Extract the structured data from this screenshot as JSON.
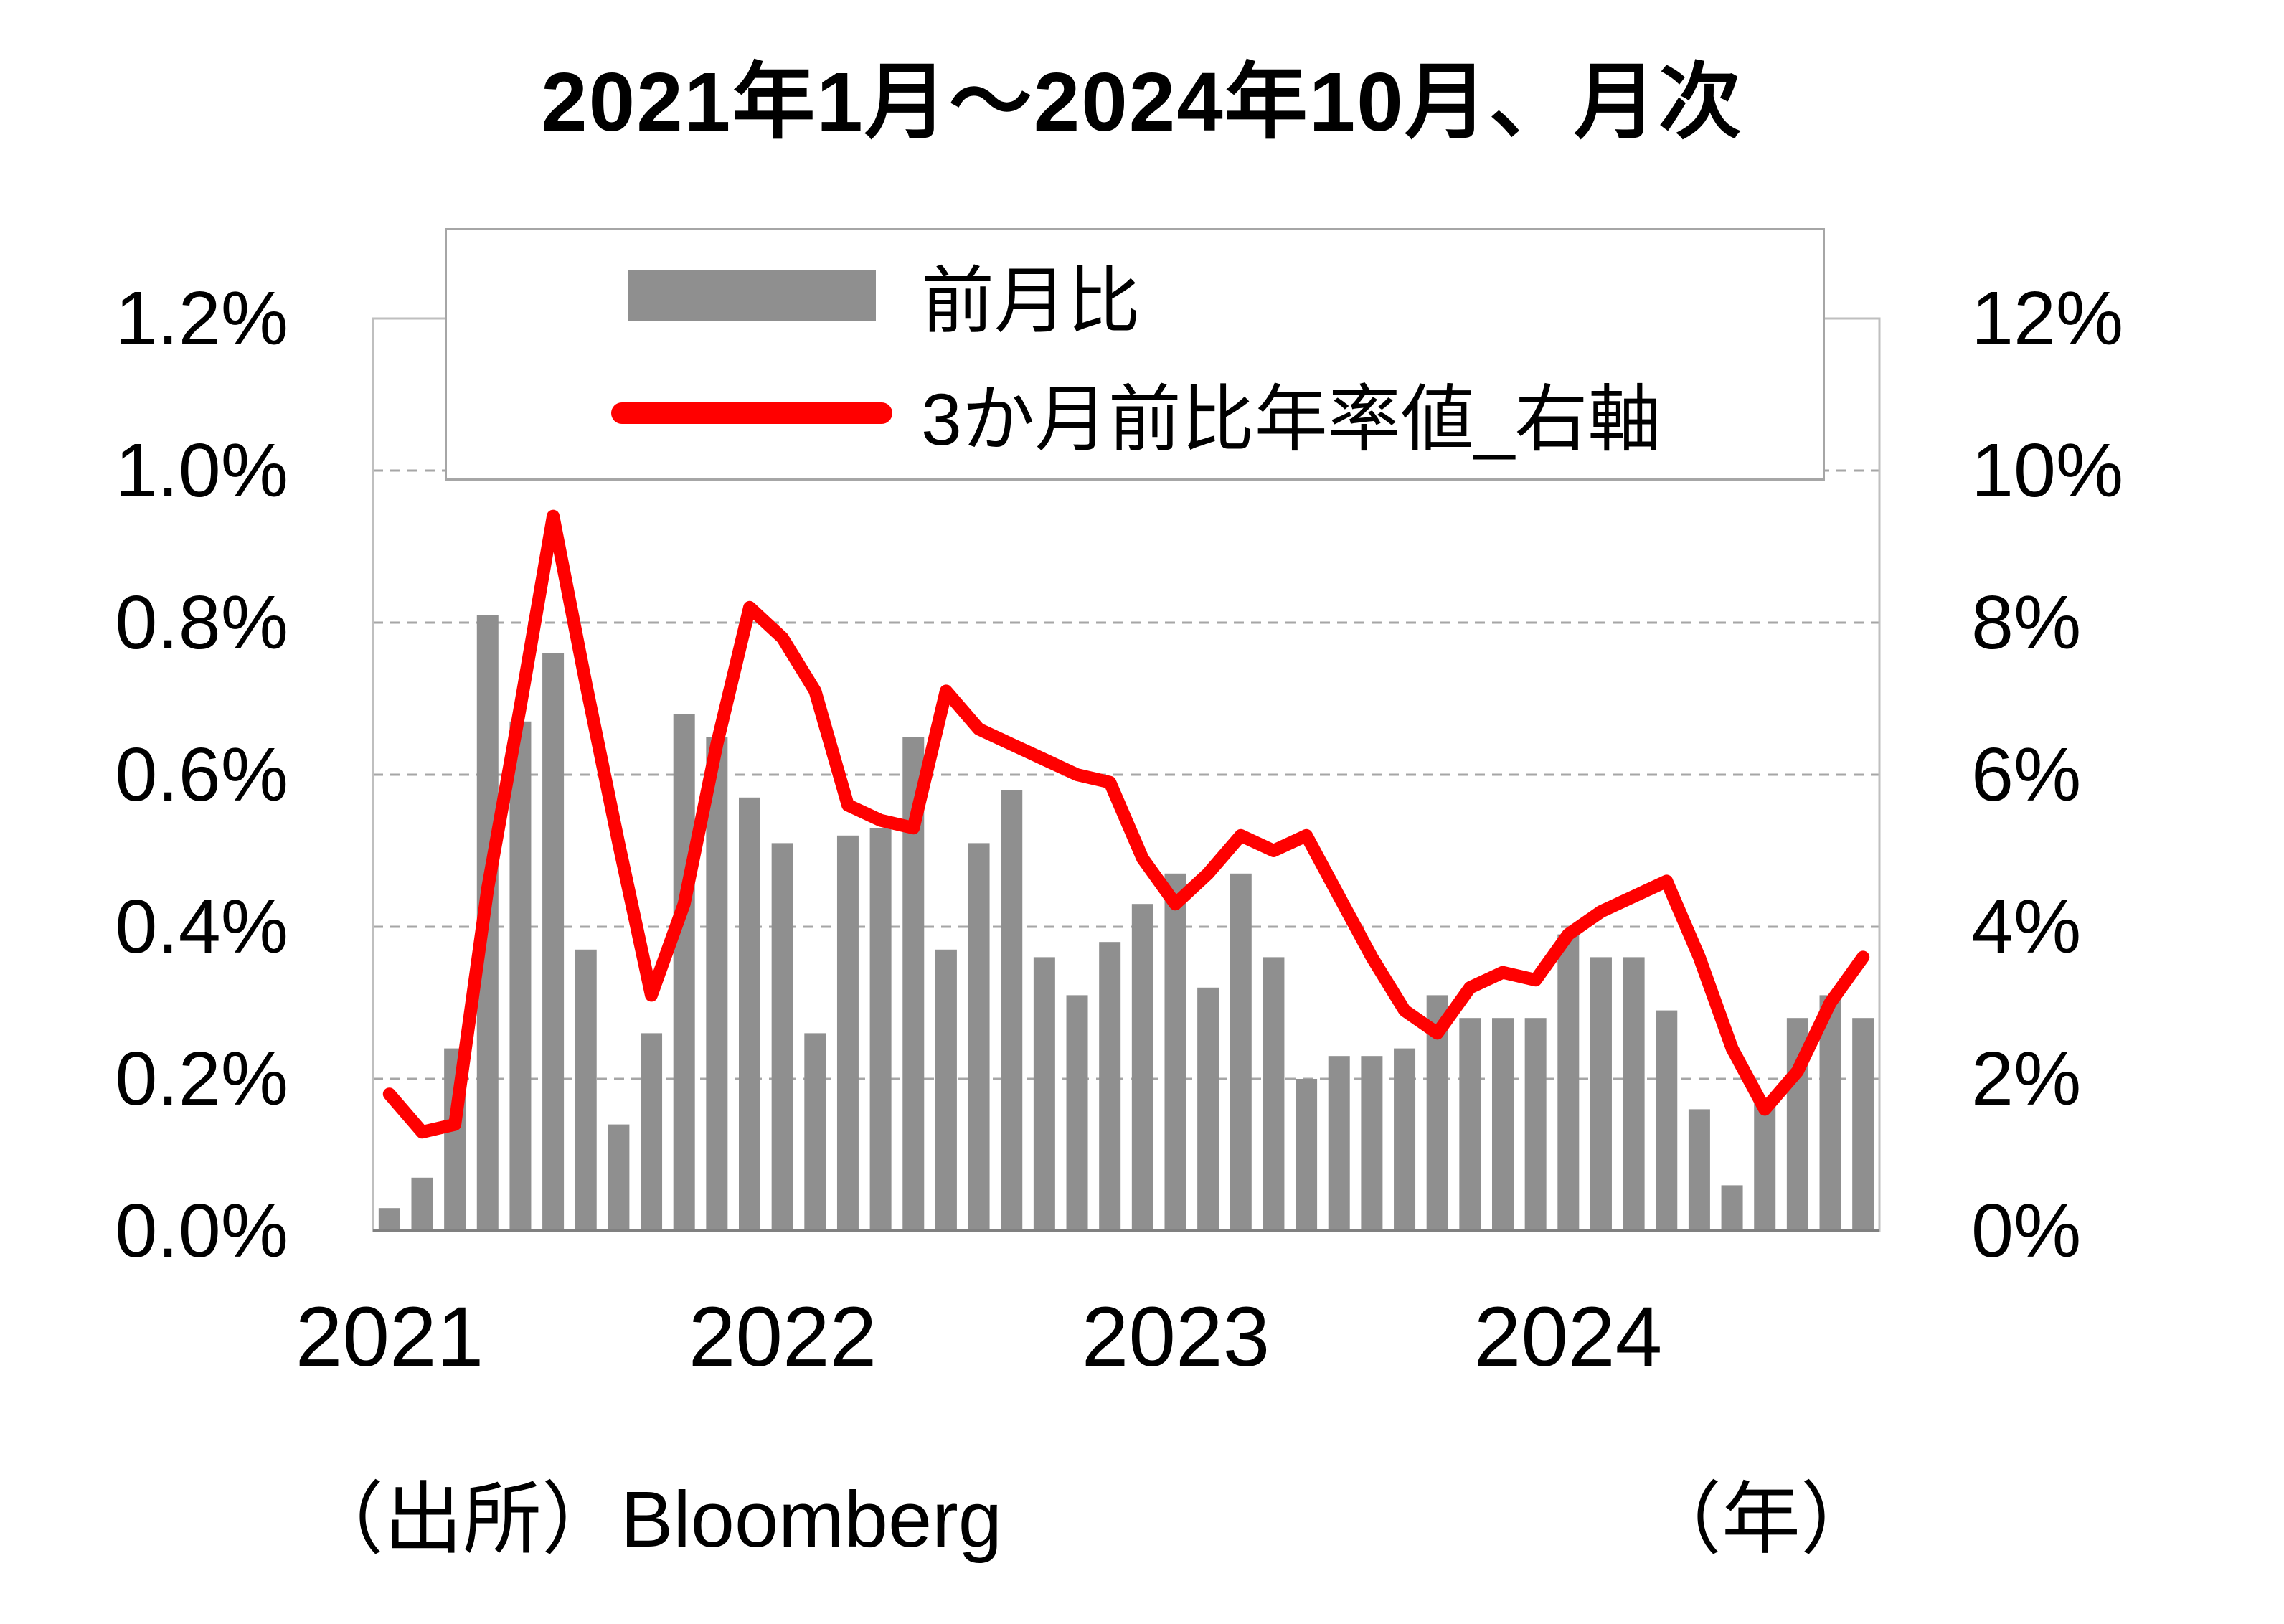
{
  "title": "2021年1月～2024年10月、月次",
  "source_note": "（出所）Bloomberg",
  "x_unit_label": "（年）",
  "legend": {
    "bar_label": "前月比",
    "line_label": "3か月前比年率値_右軸"
  },
  "colors": {
    "bar": "#8f8f8f",
    "line": "#ff0000",
    "grid": "#a6a6a6",
    "plot_border": "#bfbfbf",
    "axis": "#808080",
    "text": "#000000"
  },
  "chart_data": {
    "type": "combo",
    "title": "2021年1月～2024年10月、月次",
    "subtitle": "",
    "x_label": "年",
    "grid": "dashed-horizontal",
    "legend_position": "top-center-overlay",
    "x_ticks": [
      "2021",
      "2022",
      "2023",
      "2024"
    ],
    "left_axis": {
      "label": "前月比",
      "min": 0,
      "max": 1.2,
      "tick_step": 0.2,
      "tick_labels": [
        "0.0%",
        "0.2%",
        "0.4%",
        "0.6%",
        "0.8%",
        "1.0%",
        "1.2%"
      ]
    },
    "right_axis": {
      "label": "3か月前比年率値",
      "min": 0,
      "max": 12,
      "tick_step": 2,
      "tick_labels": [
        "0%",
        "2%",
        "4%",
        "6%",
        "8%",
        "10%",
        "12%"
      ]
    },
    "x": [
      "2021-01",
      "2021-02",
      "2021-03",
      "2021-04",
      "2021-05",
      "2021-06",
      "2021-07",
      "2021-08",
      "2021-09",
      "2021-10",
      "2021-11",
      "2021-12",
      "2022-01",
      "2022-02",
      "2022-03",
      "2022-04",
      "2022-05",
      "2022-06",
      "2022-07",
      "2022-08",
      "2022-09",
      "2022-10",
      "2022-11",
      "2022-12",
      "2023-01",
      "2023-02",
      "2023-03",
      "2023-04",
      "2023-05",
      "2023-06",
      "2023-07",
      "2023-08",
      "2023-09",
      "2023-10",
      "2023-11",
      "2023-12",
      "2024-01",
      "2024-02",
      "2024-03",
      "2024-04",
      "2024-05",
      "2024-06",
      "2024-07",
      "2024-08",
      "2024-09",
      "2024-10"
    ],
    "series": [
      {
        "name": "前月比",
        "type": "bar",
        "axis": "left",
        "unit": "% m/m",
        "color": "#8f8f8f",
        "values": [
          0.03,
          0.07,
          0.24,
          0.81,
          0.67,
          0.76,
          0.37,
          0.14,
          0.26,
          0.68,
          0.65,
          0.57,
          0.51,
          0.26,
          0.52,
          0.53,
          0.65,
          0.37,
          0.51,
          0.58,
          0.36,
          0.31,
          0.38,
          0.43,
          0.47,
          0.32,
          0.47,
          0.36,
          0.2,
          0.23,
          0.23,
          0.24,
          0.31,
          0.28,
          0.28,
          0.28,
          0.39,
          0.36,
          0.36,
          0.29,
          0.16,
          0.06,
          0.17,
          0.28,
          0.31,
          0.28
        ]
      },
      {
        "name": "3か月前比年率値_右軸",
        "type": "line",
        "axis": "right",
        "unit": "% 3m annualized",
        "color": "#ff0000",
        "values": [
          1.8,
          1.3,
          1.4,
          4.5,
          6.9,
          9.4,
          7.2,
          5.1,
          3.1,
          4.3,
          6.4,
          8.2,
          7.8,
          7.1,
          5.6,
          5.4,
          5.3,
          7.1,
          6.6,
          6.4,
          6.2,
          6.0,
          5.9,
          4.9,
          4.3,
          4.7,
          5.2,
          5.0,
          5.2,
          4.4,
          3.6,
          2.9,
          2.6,
          3.2,
          3.4,
          3.3,
          3.9,
          4.2,
          4.4,
          4.6,
          3.6,
          2.4,
          1.6,
          2.1,
          3.0,
          3.6
        ]
      }
    ]
  }
}
